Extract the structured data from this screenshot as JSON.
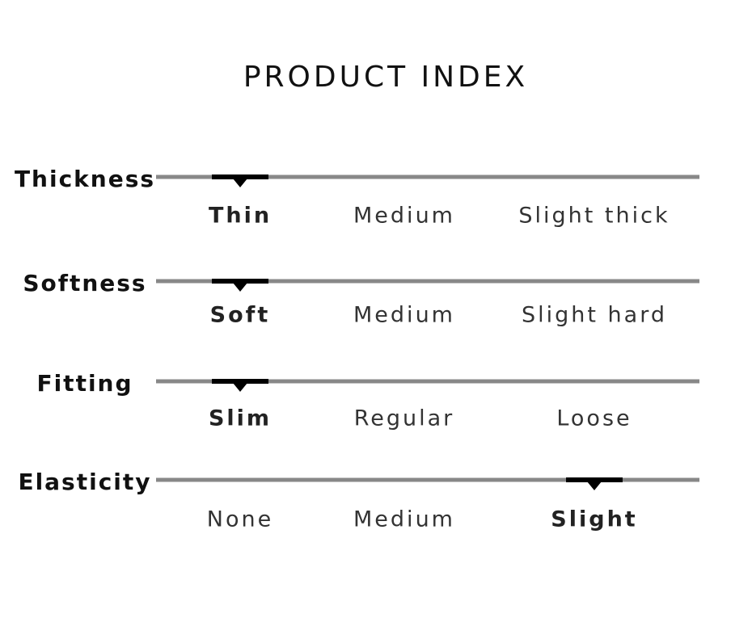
{
  "title": "PRODUCT INDEX",
  "rows": [
    {
      "label": "Thickness",
      "options": [
        "Thin",
        "Medium",
        "Slight thick"
      ],
      "selected": 0
    },
    {
      "label": "Softness",
      "options": [
        "Soft",
        "Medium",
        "Slight hard"
      ],
      "selected": 0
    },
    {
      "label": "Fitting",
      "options": [
        "Slim",
        "Regular",
        "Loose"
      ],
      "selected": 0
    },
    {
      "label": "Elasticity",
      "options": [
        "None",
        "Medium",
        "Slight"
      ],
      "selected": 2
    }
  ]
}
